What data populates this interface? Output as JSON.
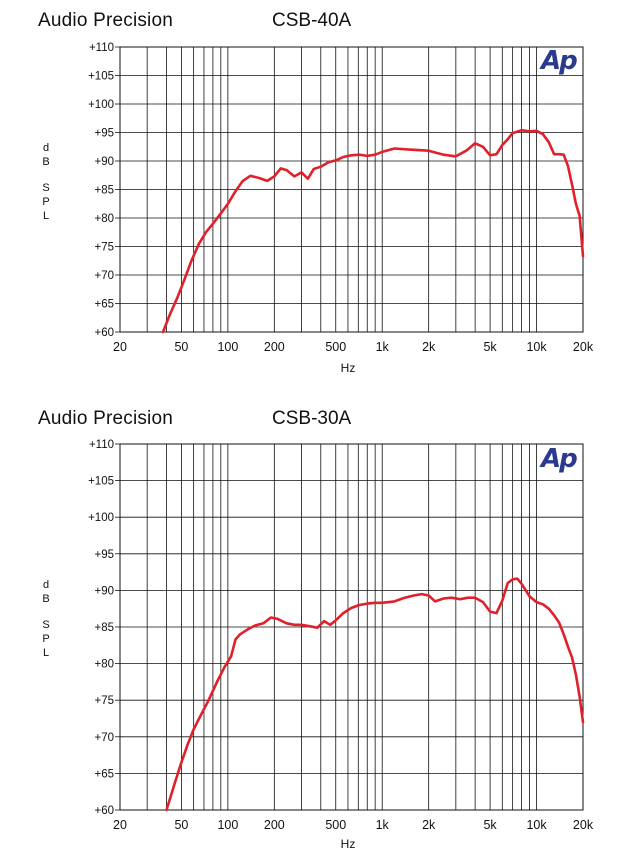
{
  "logo_text": "Ap",
  "charts": [
    {
      "brand": "Audio Precision",
      "model": "CSB-40A",
      "ylabel": [
        "d",
        "B",
        "S",
        "P",
        "L"
      ],
      "xlabel": "Hz",
      "logo_color": "#2b3a8c",
      "curve_color": "#e0202a"
    },
    {
      "brand": "Audio Precision",
      "model": "CSB-30A",
      "ylabel": [
        "d",
        "B",
        "S",
        "P",
        "L"
      ],
      "xlabel": "Hz",
      "logo_color": "#2b3a8c",
      "curve_color": "#e0202a"
    }
  ],
  "chart_data": [
    {
      "type": "line",
      "title": "CSB-40A",
      "xlabel": "Hz",
      "ylabel": "dB SPL",
      "x_scale": "log",
      "xlim": [
        20,
        20000
      ],
      "ylim": [
        60,
        110
      ],
      "grid": true,
      "xticks": [
        20,
        50,
        100,
        200,
        500,
        1000,
        2000,
        5000,
        10000,
        20000
      ],
      "xtick_labels": [
        "20",
        "50",
        "100",
        "200",
        "500",
        "1k",
        "2k",
        "5k",
        "10k",
        "20k"
      ],
      "yticks": [
        60,
        65,
        70,
        75,
        80,
        85,
        90,
        95,
        100,
        105,
        110
      ],
      "ytick_labels": [
        "+60",
        "+65",
        "+70",
        "+75",
        "+80",
        "+85",
        "+90",
        "+95",
        "+100",
        "+105",
        "+110"
      ],
      "series": [
        {
          "x": [
            38,
            42,
            47,
            52,
            58,
            65,
            72,
            80,
            90,
            100,
            112,
            125,
            140,
            160,
            180,
            200,
            220,
            240,
            270,
            300,
            330,
            360,
            400,
            450,
            500,
            560,
            630,
            710,
            800,
            900,
            1000,
            1200,
            1500,
            2000,
            2500,
            3000,
            3500,
            4000,
            4500,
            5000,
            5500,
            6000,
            6500,
            7000,
            8000,
            9000,
            10000,
            11000,
            12000,
            13000,
            14000,
            15000,
            16000,
            17000,
            18000,
            19000,
            20000
          ],
          "y": [
            60,
            63,
            66,
            69,
            72.5,
            75.5,
            77.5,
            79,
            80.8,
            82.5,
            84.7,
            86.5,
            87.4,
            87.0,
            86.5,
            87.3,
            88.7,
            88.4,
            87.3,
            88.0,
            86.9,
            88.6,
            89.0,
            89.8,
            90.1,
            90.7,
            91.0,
            91.1,
            90.9,
            91.1,
            91.6,
            92.2,
            92.0,
            91.8,
            91.1,
            90.8,
            91.8,
            93.1,
            92.5,
            91.0,
            91.2,
            92.8,
            93.8,
            94.9,
            95.4,
            95.2,
            95.3,
            94.7,
            93.3,
            91.2,
            91.2,
            91.1,
            89.1,
            85.8,
            82.5,
            80.4,
            73.3
          ]
        }
      ]
    },
    {
      "type": "line",
      "title": "CSB-30A",
      "xlabel": "Hz",
      "ylabel": "dB SPL",
      "x_scale": "log",
      "xlim": [
        20,
        20000
      ],
      "ylim": [
        60,
        110
      ],
      "grid": true,
      "xticks": [
        20,
        50,
        100,
        200,
        500,
        1000,
        2000,
        5000,
        10000,
        20000
      ],
      "xtick_labels": [
        "20",
        "50",
        "100",
        "200",
        "500",
        "1k",
        "2k",
        "5k",
        "10k",
        "20k"
      ],
      "yticks": [
        60,
        65,
        70,
        75,
        80,
        85,
        90,
        95,
        100,
        105,
        110
      ],
      "ytick_labels": [
        "+60",
        "+65",
        "+70",
        "+75",
        "+80",
        "+85",
        "+90",
        "+95",
        "+100",
        "+105",
        "+110"
      ],
      "series": [
        {
          "x": [
            40,
            45,
            50,
            55,
            60,
            67,
            75,
            85,
            95,
            105,
            112,
            120,
            135,
            150,
            170,
            190,
            210,
            240,
            270,
            300,
            340,
            380,
            420,
            460,
            500,
            560,
            630,
            710,
            800,
            900,
            1000,
            1200,
            1400,
            1600,
            1800,
            2000,
            2200,
            2500,
            2800,
            3200,
            3600,
            4000,
            4500,
            5000,
            5500,
            6000,
            6500,
            7000,
            7500,
            8000,
            9000,
            10000,
            11000,
            12000,
            13000,
            14000,
            15000,
            16000,
            17000,
            18000,
            19000,
            20000
          ],
          "y": [
            60,
            63.5,
            66.5,
            69,
            71,
            73,
            75,
            77.5,
            79.5,
            81,
            83.3,
            84,
            84.7,
            85.2,
            85.5,
            86.3,
            86.1,
            85.5,
            85.3,
            85.3,
            85.1,
            84.9,
            85.8,
            85.3,
            85.9,
            86.9,
            87.6,
            88.0,
            88.2,
            88.3,
            88.3,
            88.5,
            89.0,
            89.3,
            89.5,
            89.3,
            88.5,
            88.9,
            89.0,
            88.8,
            89.0,
            89.0,
            88.4,
            87.1,
            86.9,
            88.6,
            91.0,
            91.5,
            91.6,
            90.9,
            89.2,
            88.4,
            88.1,
            87.5,
            86.6,
            85.6,
            84.0,
            82.3,
            80.8,
            78.5,
            75.5,
            72.0
          ]
        }
      ]
    }
  ]
}
